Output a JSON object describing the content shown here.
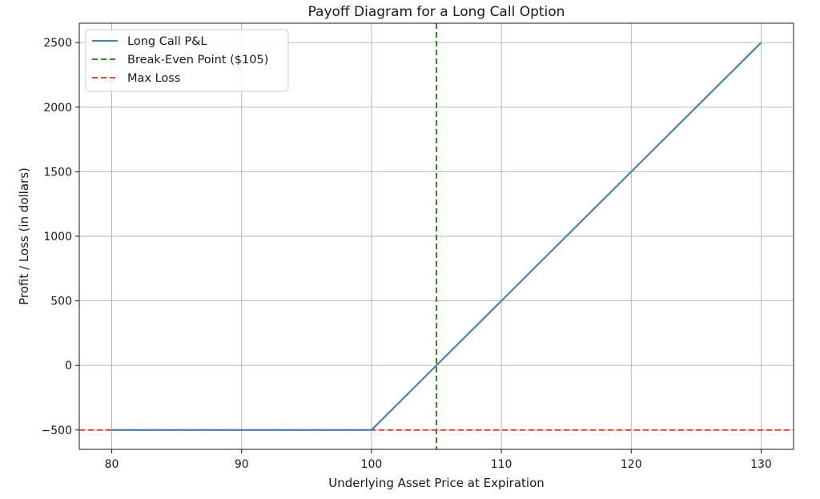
{
  "chart_data": {
    "type": "line",
    "title": "Payoff Diagram for a Long Call Option",
    "xlabel": "Underlying Asset Price at Expiration",
    "ylabel": "Profit / Loss (in dollars)",
    "xlim": [
      77.5,
      132.5
    ],
    "ylim": [
      -650,
      2650
    ],
    "grid": true,
    "legend_position": "top-left",
    "x_ticks": [
      80,
      90,
      100,
      110,
      120,
      130
    ],
    "x_tick_labels": [
      "80",
      "90",
      "100",
      "110",
      "120",
      "130"
    ],
    "y_ticks": [
      -500,
      0,
      500,
      1000,
      1500,
      2000,
      2500
    ],
    "y_tick_labels": [
      "−500",
      "0",
      "500",
      "1000",
      "1500",
      "2000",
      "2500"
    ],
    "series": [
      {
        "name": "Long Call P&L",
        "color": "#4682b4",
        "style": "solid",
        "x": [
          80,
          100,
          130
        ],
        "y": [
          -500,
          -500,
          2500
        ]
      }
    ],
    "reference_lines": [
      {
        "name": "Break-Even Point ($105)",
        "orientation": "vertical",
        "value": 105,
        "color": "#2e8b22",
        "style": "dashed"
      },
      {
        "name": "Max Loss",
        "orientation": "horizontal",
        "value": -500,
        "color": "#e8453c",
        "style": "dashed"
      }
    ]
  }
}
